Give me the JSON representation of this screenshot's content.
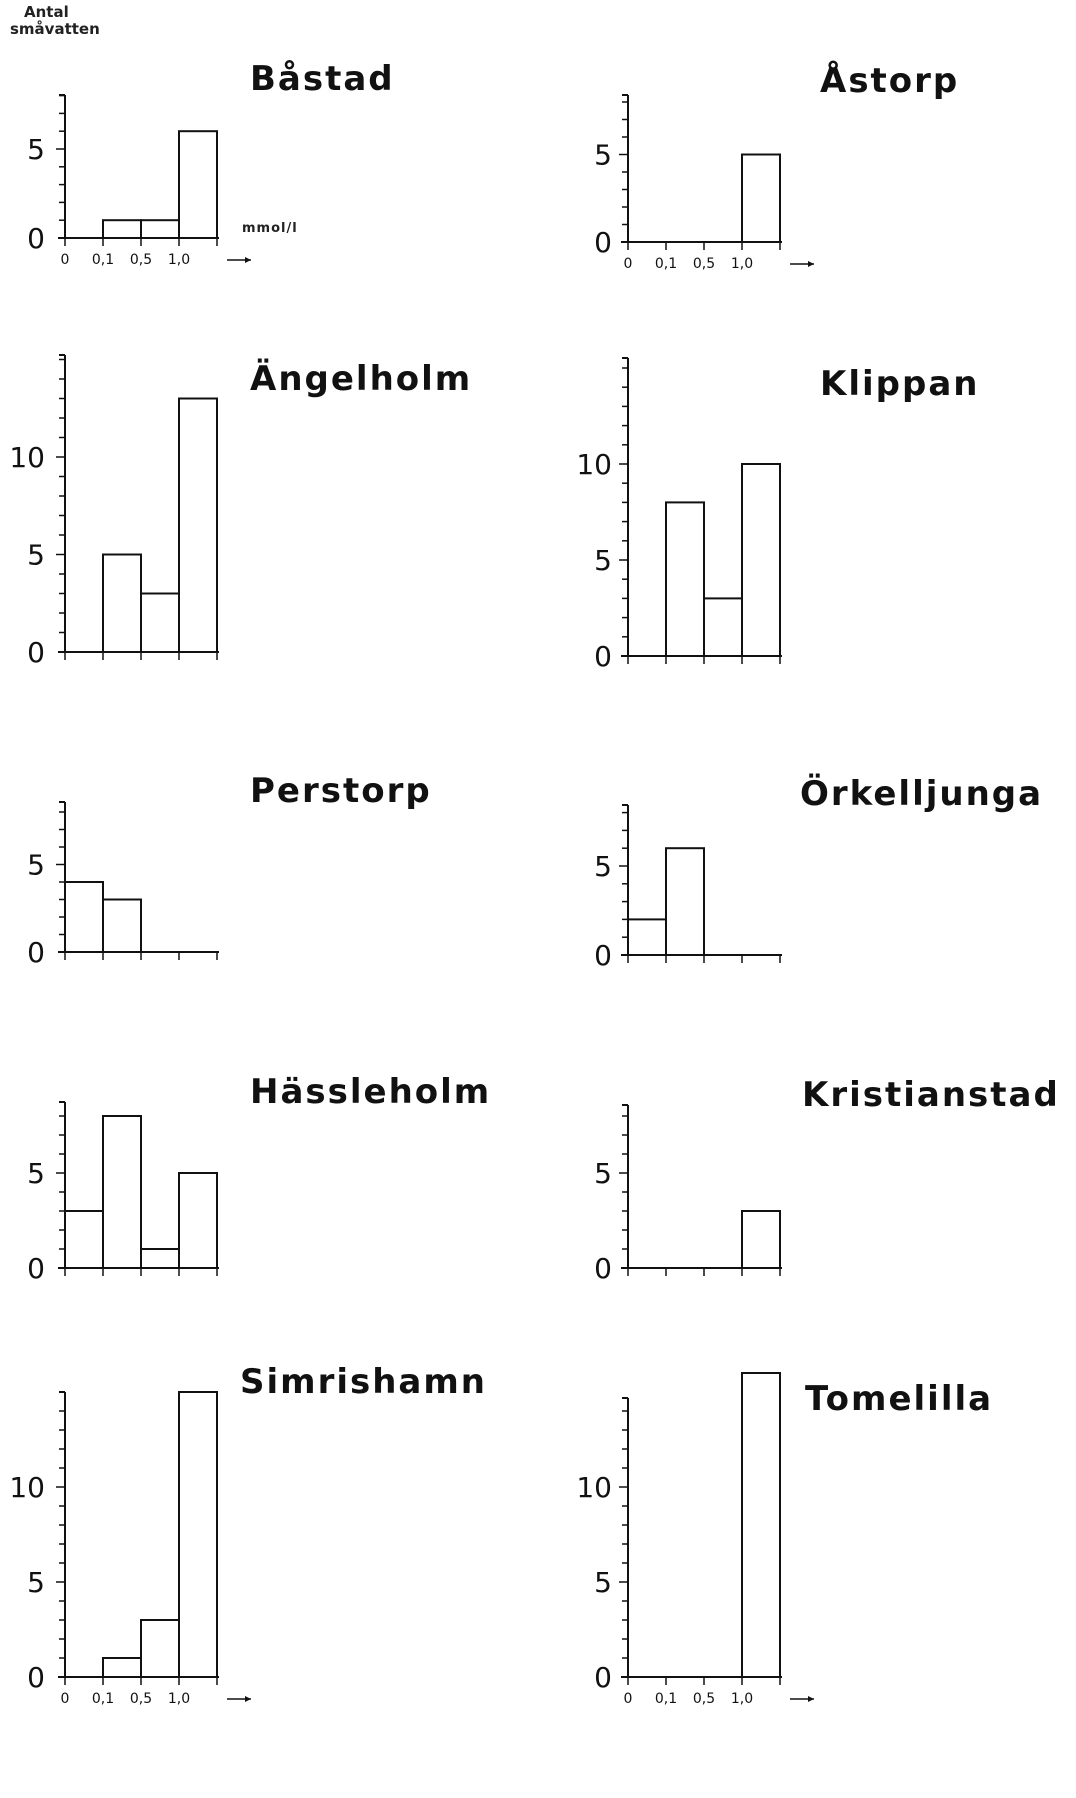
{
  "ylabel": [
    "Antal",
    "småvatten"
  ],
  "xunit": "mmol/l",
  "chart_data": [
    {
      "type": "bar",
      "title": "Båstad",
      "bin_edges": [
        "0",
        "0.1",
        "0.5",
        "1.0",
        "→"
      ],
      "values": [
        0,
        1,
        1,
        6
      ],
      "ylim": [
        0,
        8
      ],
      "yticks": [
        0,
        5
      ],
      "xtick_labels": [
        "0",
        "0.1",
        "0.5",
        "1.0",
        "→"
      ]
    },
    {
      "type": "bar",
      "title": "Åstorp",
      "bin_edges": [
        "0",
        "0.1",
        "0.5",
        "1.0",
        "→"
      ],
      "values": [
        0,
        0,
        0,
        5
      ],
      "ylim": [
        0,
        8
      ],
      "yticks": [
        0,
        5
      ],
      "xtick_labels": [
        "0",
        "0.1",
        "0.5",
        "1.0",
        "→"
      ]
    },
    {
      "type": "bar",
      "title": "Ängelholm",
      "bin_edges": [
        "0",
        "0.1",
        "0.5",
        "1.0",
        "→"
      ],
      "values": [
        0,
        5,
        3,
        13
      ],
      "ylim": [
        0,
        16
      ],
      "yticks": [
        0,
        5,
        10
      ],
      "xtick_labels": []
    },
    {
      "type": "bar",
      "title": "Klippan",
      "bin_edges": [
        "0",
        "0.1",
        "0.5",
        "1.0",
        "→"
      ],
      "values": [
        0,
        8,
        3,
        10
      ],
      "ylim": [
        0,
        16
      ],
      "yticks": [
        0,
        5,
        10
      ],
      "xtick_labels": []
    },
    {
      "type": "bar",
      "title": "Perstorp",
      "bin_edges": [
        "0",
        "0.1",
        "0.5",
        "1.0",
        "→"
      ],
      "values": [
        4,
        3,
        0,
        0
      ],
      "ylim": [
        0,
        8
      ],
      "yticks": [
        0,
        5
      ],
      "xtick_labels": []
    },
    {
      "type": "bar",
      "title": "Örkelljunga",
      "bin_edges": [
        "0",
        "0.1",
        "0.5",
        "1.0",
        "→"
      ],
      "values": [
        2,
        6,
        0,
        0
      ],
      "ylim": [
        0,
        8
      ],
      "yticks": [
        0,
        5
      ],
      "xtick_labels": []
    },
    {
      "type": "bar",
      "title": "Hässleholm",
      "bin_edges": [
        "0",
        "0.1",
        "0.5",
        "1.0",
        "→"
      ],
      "values": [
        3,
        8,
        1,
        5
      ],
      "ylim": [
        0,
        10
      ],
      "yticks": [
        0,
        5
      ],
      "xtick_labels": []
    },
    {
      "type": "bar",
      "title": "Kristianstad",
      "bin_edges": [
        "0",
        "0.1",
        "0.5",
        "1.0",
        "→"
      ],
      "values": [
        0,
        0,
        0,
        3
      ],
      "ylim": [
        0,
        10
      ],
      "yticks": [
        0,
        5
      ],
      "xtick_labels": []
    },
    {
      "type": "bar",
      "title": "Simrishamn",
      "bin_edges": [
        "0",
        "0.1",
        "0.5",
        "1.0",
        "→"
      ],
      "values": [
        0,
        1,
        3,
        15
      ],
      "ylim": [
        0,
        15
      ],
      "yticks": [
        0,
        5,
        10
      ],
      "xtick_labels": [
        "0",
        "0.1",
        "0.5",
        "1.0",
        "→"
      ]
    },
    {
      "type": "bar",
      "title": "Tomelilla",
      "bin_edges": [
        "0",
        "0.1",
        "0.5",
        "1.0",
        "→"
      ],
      "values": [
        0,
        0,
        0,
        16
      ],
      "ylim": [
        0,
        15
      ],
      "yticks": [
        0,
        5,
        10
      ],
      "xtick_labels": [
        "0",
        "0.1",
        "0.5",
        "1.0",
        "→"
      ]
    }
  ]
}
